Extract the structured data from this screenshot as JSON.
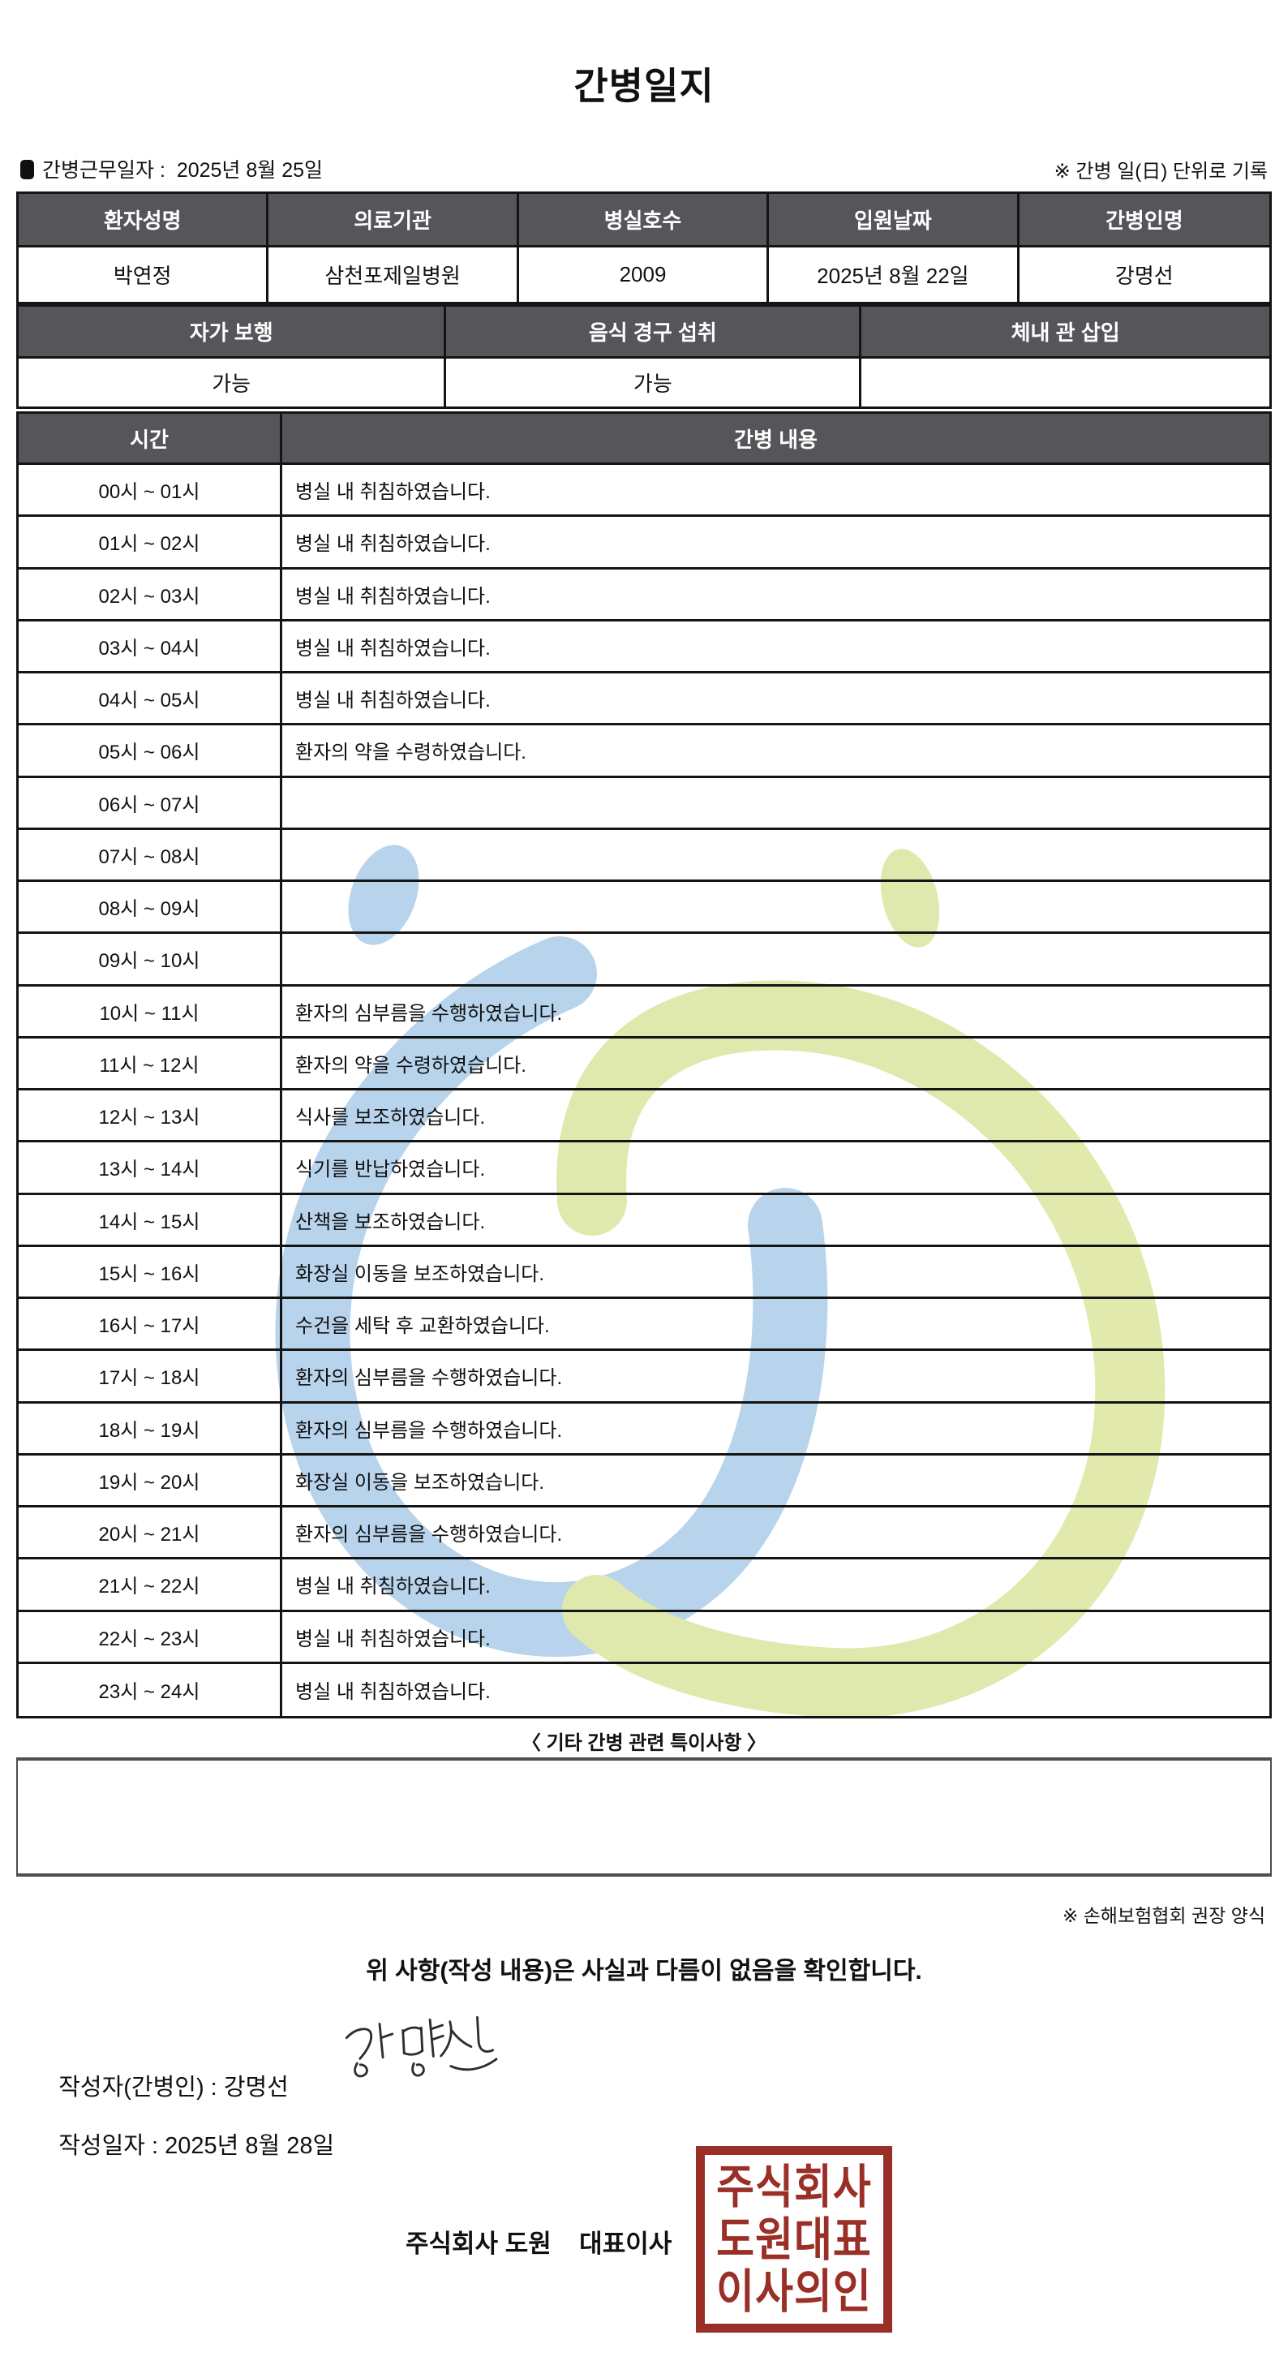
{
  "page": {
    "title": "간병일지",
    "work_date_label": "간병근무일자",
    "work_date_separator": " :  ",
    "work_date_value": "2025년 8월 25일",
    "unit_note": "※ 간병 일(日) 단위로 기록"
  },
  "patient_table": {
    "headers": [
      "환자성명",
      "의료기관",
      "병실호수",
      "입원날짜",
      "간병인명"
    ],
    "values": [
      "박연정",
      "삼천포제일병원",
      "2009",
      "2025년 8월 22일",
      "강명선"
    ]
  },
  "condition_table": {
    "headers": [
      "자가 보행",
      "음식 경구 섭취",
      "체내 관 삽입"
    ],
    "values": [
      "가능",
      "가능",
      ""
    ]
  },
  "log_table": {
    "headers": [
      "시간",
      "간병 내용"
    ],
    "rows": [
      {
        "time": "00시 ~ 01시",
        "content": "병실 내 취침하였습니다."
      },
      {
        "time": "01시 ~ 02시",
        "content": "병실 내 취침하였습니다."
      },
      {
        "time": "02시 ~ 03시",
        "content": "병실 내 취침하였습니다."
      },
      {
        "time": "03시 ~ 04시",
        "content": "병실 내 취침하였습니다."
      },
      {
        "time": "04시 ~ 05시",
        "content": "병실 내 취침하였습니다."
      },
      {
        "time": "05시 ~ 06시",
        "content": "환자의 약을 수령하였습니다."
      },
      {
        "time": "06시 ~ 07시",
        "content": ""
      },
      {
        "time": "07시 ~ 08시",
        "content": ""
      },
      {
        "time": "08시 ~ 09시",
        "content": ""
      },
      {
        "time": "09시 ~ 10시",
        "content": ""
      },
      {
        "time": "10시 ~ 11시",
        "content": "환자의 심부름을 수행하였습니다."
      },
      {
        "time": "11시 ~ 12시",
        "content": "환자의 약을 수령하였습니다."
      },
      {
        "time": "12시 ~ 13시",
        "content": "식사를 보조하였습니다."
      },
      {
        "time": "13시 ~ 14시",
        "content": "식기를 반납하였습니다."
      },
      {
        "time": "14시 ~ 15시",
        "content": "산책을 보조하였습니다."
      },
      {
        "time": "15시 ~ 16시",
        "content": "화장실 이동을 보조하였습니다."
      },
      {
        "time": "16시 ~ 17시",
        "content": "수건을 세탁 후 교환하였습니다."
      },
      {
        "time": "17시 ~ 18시",
        "content": "환자의 심부름을 수행하였습니다."
      },
      {
        "time": "18시 ~ 19시",
        "content": "환자의 심부름을 수행하였습니다."
      },
      {
        "time": "19시 ~ 20시",
        "content": "화장실 이동을 보조하였습니다."
      },
      {
        "time": "20시 ~ 21시",
        "content": "환자의 심부름을 수행하였습니다."
      },
      {
        "time": "21시 ~ 22시",
        "content": "병실 내 취침하였습니다."
      },
      {
        "time": "22시 ~ 23시",
        "content": "병실 내 취침하였습니다."
      },
      {
        "time": "23시 ~ 24시",
        "content": "병실 내 취침하였습니다."
      }
    ]
  },
  "remarks": {
    "title": "〈 기타 간병 관련 특이사항 〉",
    "content": "",
    "form_note": "※ 손해보험협회 권장 양식"
  },
  "footer": {
    "confirmation": "위 사항(작성 내용)은 사실과 다름이 없음을 확인합니다.",
    "writer_label": "작성자(간병인) : ",
    "writer_name": "강명선",
    "signature_name": "강명선",
    "date_label": "작성일자 : ",
    "date_value": "2025년 8월 28일",
    "company_line": "주식회사 도원    대표이사",
    "stamp_lines": [
      "주식회사",
      "도원대표",
      "이사의인"
    ],
    "stamp_color": "#9a2f28"
  },
  "watermark_colors": {
    "blue": "#b4d2ec",
    "green": "#dfe8a9"
  }
}
